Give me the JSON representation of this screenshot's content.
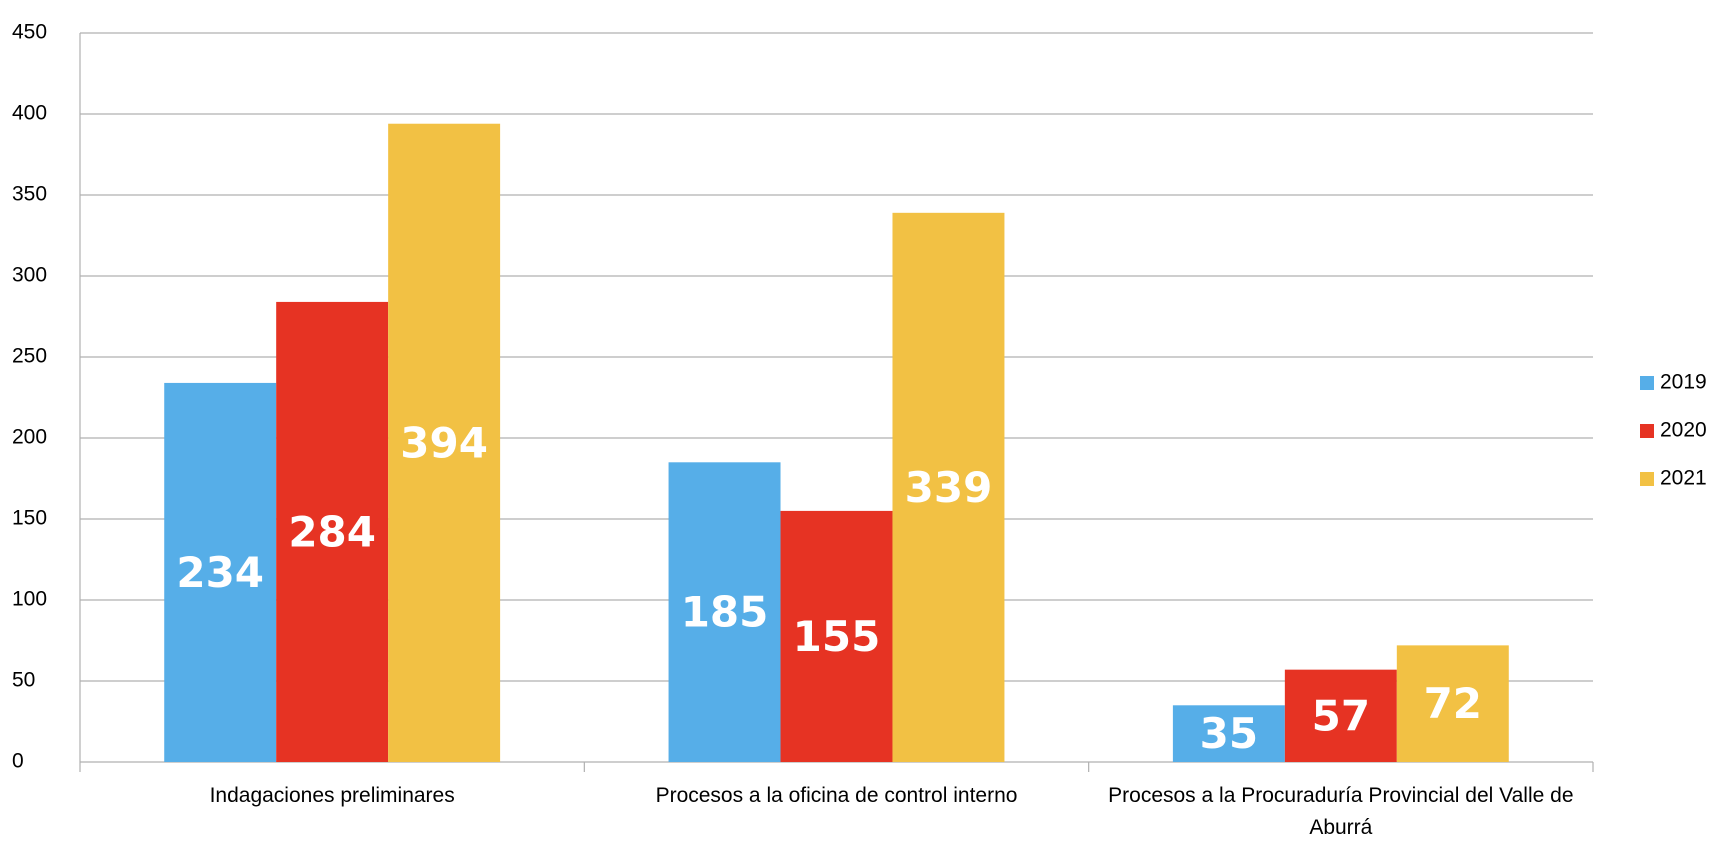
{
  "chart_data": {
    "type": "bar",
    "categories": [
      "Indagaciones preliminares",
      "Procesos a la oficina de control interno",
      "Procesos a la Procuraduría Provincial del Valle de Aburrá"
    ],
    "series": [
      {
        "name": "2019",
        "color": "#56aee8",
        "values": [
          234,
          185,
          35
        ]
      },
      {
        "name": "2020",
        "color": "#e63323",
        "values": [
          284,
          155,
          57
        ]
      },
      {
        "name": "2021",
        "color": "#f2c144",
        "values": [
          394,
          339,
          72
        ]
      }
    ],
    "ylim": [
      0,
      450
    ],
    "yticks": [
      0,
      50,
      100,
      150,
      200,
      250,
      300,
      350,
      400,
      450
    ],
    "grid": true,
    "legend": "right"
  }
}
